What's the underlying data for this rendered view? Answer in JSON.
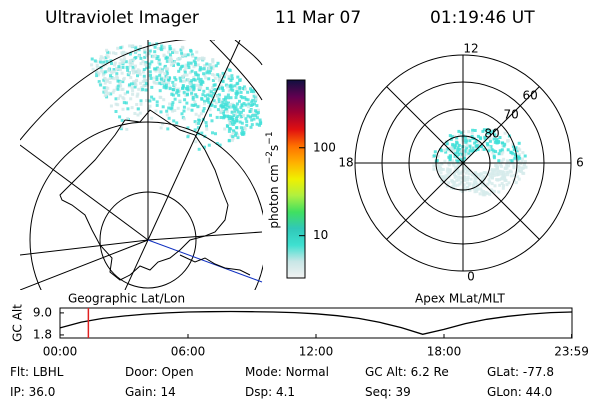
{
  "header": {
    "title": "Ultraviolet Imager",
    "date": "11 Mar 07",
    "time": "01:19:46 UT"
  },
  "map": {
    "label": "Geographic Lat/Lon"
  },
  "colorbar": {
    "label": [
      "photon cm",
      "−2",
      "s",
      "−1"
    ],
    "scale": "log",
    "clim": [
      3.3,
      590
    ],
    "ticks": [
      10,
      100
    ],
    "colors": [
      "#f2f2f2",
      "#c8e6e6",
      "#3ee0d0",
      "#30c8b8",
      "#40e060",
      "#b0f040",
      "#f0f000",
      "#ffb000",
      "#ff7000",
      "#e01010",
      "#a00030",
      "#600050",
      "#101040"
    ]
  },
  "polar": {
    "label": "Apex MLat/MLT",
    "rlim": [
      90,
      50
    ],
    "lat_ticks": [
      80,
      70,
      60
    ],
    "mlt_ticks": [
      0,
      6,
      12,
      18
    ]
  },
  "chart_data": {
    "type": "line",
    "ylabel": "GC Alt",
    "x": [
      0,
      1,
      2,
      3,
      4,
      5,
      6,
      7,
      8,
      9,
      10,
      11,
      12,
      13,
      14,
      15,
      16,
      17,
      18,
      19,
      20,
      21,
      22,
      23,
      23.98
    ],
    "values": [
      4.1,
      6.0,
      7.2,
      8.0,
      8.6,
      9.0,
      9.3,
      9.4,
      9.45,
      9.4,
      9.3,
      9.1,
      8.7,
      8.1,
      7.2,
      5.9,
      4.2,
      2.0,
      3.6,
      5.5,
      6.9,
      7.9,
      8.6,
      9.1,
      9.3
    ],
    "color": "#000000",
    "xlim": [
      0,
      24
    ],
    "xticks": [
      {
        "value": 0,
        "label": "00:00"
      },
      {
        "value": 6,
        "label": "06:00"
      },
      {
        "value": 12,
        "label": "12:00"
      },
      {
        "value": 18,
        "label": "18:00"
      },
      {
        "value": 23.98,
        "label": "23:59"
      }
    ],
    "ylim": [
      0.8,
      10.6
    ],
    "yticks": [
      {
        "value": 9,
        "label": "9.0"
      },
      {
        "value": 1.8,
        "label": "1.8"
      }
    ],
    "marker_x": 1.33,
    "marker_color": "#e02020"
  },
  "footer": {
    "fields": [
      [
        "Flt:",
        "LBHL"
      ],
      [
        "Door:",
        "Open"
      ],
      [
        "Mode:",
        "Normal"
      ],
      [
        "GC Alt:",
        "6.2 Re"
      ],
      [
        "GLat:",
        "-77.8"
      ],
      [
        "IP:",
        "36.0"
      ],
      [
        "Gain:",
        "14"
      ],
      [
        "Dsp:",
        "4.1"
      ],
      [
        "Seq:",
        "39"
      ],
      [
        "GLon:",
        "44.0"
      ]
    ]
  }
}
